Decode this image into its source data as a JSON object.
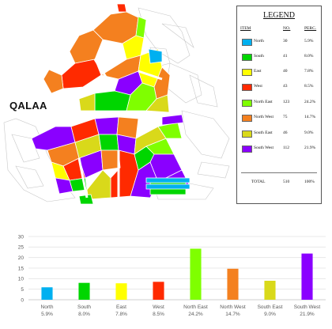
{
  "map": {
    "district_label": "QALAA"
  },
  "legend": {
    "title": "LEGEND",
    "headers": {
      "item": "ITEM",
      "count": "NO.",
      "percent": "PERC."
    },
    "items": [
      {
        "name": "North",
        "count": "30",
        "percent": "5.9%",
        "color": "#00b0f0"
      },
      {
        "name": "South",
        "count": "41",
        "percent": "8.0%",
        "color": "#00d600"
      },
      {
        "name": "East",
        "count": "40",
        "percent": "7.8%",
        "color": "#ffff00"
      },
      {
        "name": "West",
        "count": "43",
        "percent": "8.5%",
        "color": "#ff2a00"
      },
      {
        "name": "North East",
        "count": "123",
        "percent": "24.2%",
        "color": "#7fff00"
      },
      {
        "name": "North West",
        "count": "75",
        "percent": "14.7%",
        "color": "#f4801f"
      },
      {
        "name": "South East",
        "count": "46",
        "percent": "9.0%",
        "color": "#d9d91a"
      },
      {
        "name": "South West",
        "count": "112",
        "percent": "21.9%",
        "color": "#8a00ff"
      }
    ],
    "total": {
      "label": "TOTAL",
      "count": "510",
      "percent": "100%"
    }
  },
  "chart_data": {
    "type": "bar",
    "categories": [
      "North",
      "South",
      "East",
      "West",
      "North East",
      "North West",
      "South East",
      "South West"
    ],
    "category_sublabels": [
      "5.9%",
      "8.0%",
      "7.8%",
      "8.5%",
      "24.2%",
      "14.7%",
      "9.0%",
      "21.9%"
    ],
    "values": [
      5.9,
      8.0,
      7.8,
      8.5,
      24.2,
      14.7,
      9.0,
      21.9
    ],
    "colors": [
      "#00b0f0",
      "#00d600",
      "#ffff00",
      "#ff2a00",
      "#7fff00",
      "#f4801f",
      "#d9d91a",
      "#8a00ff"
    ],
    "title": "",
    "xlabel": "",
    "ylabel": "",
    "ylim": [
      0,
      30
    ],
    "yticks": [
      0,
      5,
      10,
      15,
      20,
      25,
      30
    ],
    "grid": true,
    "legend": "none"
  }
}
